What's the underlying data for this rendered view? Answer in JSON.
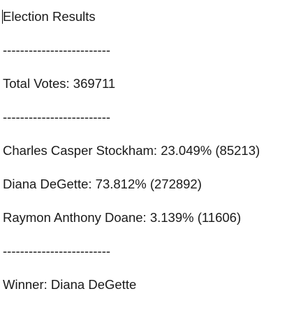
{
  "document": {
    "title": "Election Results",
    "separator": "-------------------------",
    "total_votes_line": "Total Votes: 369711",
    "candidates": [
      "Charles Casper Stockham: 23.049% (85213)",
      "Diana DeGette: 73.812% (272892)",
      "Raymon Anthony Doane: 3.139% (11606)"
    ],
    "winner_line": "Winner: Diana DeGette"
  }
}
